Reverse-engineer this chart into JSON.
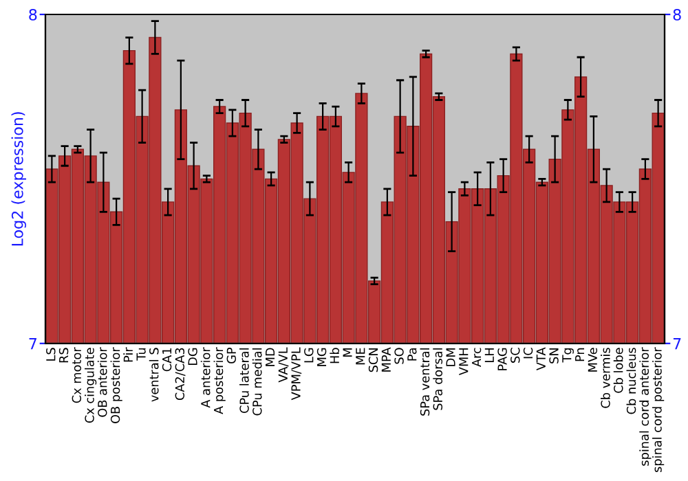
{
  "chart_data": {
    "type": "bar",
    "ylabel": "Log2 (expression)",
    "categories": [
      "LS",
      "RS",
      "Cx motor",
      "Cx cingulate",
      "OB anterior",
      "OB posterior",
      "Pir",
      "Tu",
      "ventral S",
      "CA1",
      "CA2/CA3",
      "DG",
      "A anterior",
      "A posterior",
      "GP",
      "CPu lateral",
      "CPu medial",
      "MD",
      "VA/VL",
      "VPM/VPL",
      "LG",
      "MG",
      "Hb",
      "M",
      "ME",
      "SCN",
      "MPA",
      "SO",
      "Pa",
      "SPa ventral",
      "SPa dorsal",
      "DM",
      "VMH",
      "Arc",
      "LH",
      "PAG",
      "SC",
      "IC",
      "VTA",
      "SN",
      "Tg",
      "Pn",
      "MVe",
      "Cb vermis",
      "Cb lobe",
      "Cb nucleus",
      "spinal cord anterior",
      "spinal cord posterior"
    ],
    "values": [
      7.53,
      7.57,
      7.59,
      7.57,
      7.49,
      7.4,
      7.89,
      7.69,
      7.93,
      7.43,
      7.71,
      7.54,
      7.5,
      7.72,
      7.67,
      7.7,
      7.59,
      7.5,
      7.62,
      7.67,
      7.44,
      7.69,
      7.69,
      7.52,
      7.76,
      7.19,
      7.43,
      7.69,
      7.66,
      7.88,
      7.75,
      7.37,
      7.47,
      7.47,
      7.47,
      7.51,
      7.88,
      7.59,
      7.49,
      7.56,
      7.71,
      7.81,
      7.59,
      7.48,
      7.43,
      7.43,
      7.53,
      7.7
    ],
    "errors": [
      0.04,
      0.03,
      0.01,
      0.08,
      0.09,
      0.04,
      0.04,
      0.08,
      0.05,
      0.04,
      0.15,
      0.07,
      0.01,
      0.02,
      0.04,
      0.04,
      0.06,
      0.02,
      0.01,
      0.03,
      0.05,
      0.04,
      0.03,
      0.03,
      0.03,
      0.01,
      0.04,
      0.11,
      0.15,
      0.01,
      0.01,
      0.09,
      0.02,
      0.05,
      0.08,
      0.05,
      0.02,
      0.04,
      0.01,
      0.07,
      0.03,
      0.06,
      0.1,
      0.05,
      0.03,
      0.03,
      0.03,
      0.04
    ],
    "color": "#b83434",
    "ylim": [
      7,
      8
    ],
    "yticks": [
      7,
      8
    ],
    "y2lim": [
      7,
      8
    ],
    "y2ticks": [
      7,
      8
    ],
    "grid": false,
    "legend": false
  }
}
